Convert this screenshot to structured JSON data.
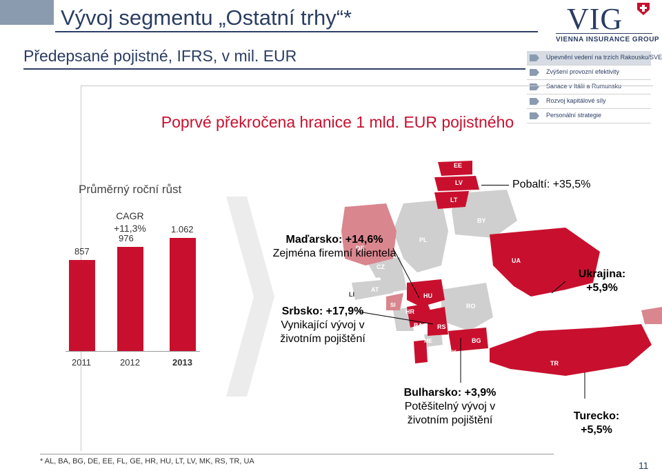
{
  "header": {
    "title": "Vývoj segmentu „Ostatní trhy“*",
    "subtitle": "Předepsané pojistné, IFRS, v mil. EUR"
  },
  "logo": {
    "brand": "VIG",
    "tagline": "VIENNA INSURANCE GROUP"
  },
  "side_menu": [
    {
      "label": "Upevnění vedení na trzích Rakousku/SVE",
      "active": true
    },
    {
      "label": "Zvýšení provozní efektivity",
      "active": false
    },
    {
      "label": "Sanace v Itálii a Rumunsku",
      "active": false
    },
    {
      "label": "Rozvoj kapitálové síly",
      "active": false
    },
    {
      "label": "Personální strategie",
      "active": false
    }
  ],
  "headline": "Poprvé překročena hranice 1 mld. EUR pojistného",
  "growth_chart": {
    "title": "Průměrný roční růst",
    "cagr_label": "CAGR",
    "cagr_value": "+11,3%"
  },
  "chart_data": {
    "type": "bar",
    "categories": [
      "2011",
      "2012",
      "2013"
    ],
    "values": [
      857,
      976,
      1062
    ],
    "value_labels": [
      "857",
      "976",
      "1.062"
    ],
    "title": "Průměrný roční růst",
    "ylim": [
      0,
      1100
    ],
    "bold_category": "2013",
    "color": "#c8102e"
  },
  "map": {
    "countries": [
      "EE",
      "LV",
      "LT",
      "PL",
      "BY",
      "DE",
      "CZ",
      "SK",
      "AT",
      "LI",
      "UA",
      "HU",
      "SI",
      "HR",
      "RO",
      "BA",
      "RS",
      "ME",
      "BG",
      "MK",
      "AL",
      "TR",
      "GE"
    ],
    "highlight_color": "#c8102e",
    "secondary_color": "#d9868f",
    "neutral_color": "#cfcfcf"
  },
  "annotations": {
    "pobalti": "Pobaltí: +35,5%",
    "madarsko_title": "Maďarsko: +14,6%",
    "madarsko_text": "Zejména firemní klientela",
    "srbsko_title": "Srbsko: +17,9%",
    "srbsko_text_1": "Vynikající vývoj v",
    "srbsko_text_2": "životním pojištění",
    "ukrajina_title": "Ukrajina:",
    "ukrajina_value": "+5,9%",
    "bulharsko_title": "Bulharsko: +3,9%",
    "bulharsko_text_1": "Potěšitelný vývoj v",
    "bulharsko_text_2": "životním pojištění",
    "turecko_title": "Turecko:",
    "turecko_value": "+5,5%"
  },
  "footnote": "*  AL, BA, BG, DE, EE, FL, GE, HR, HU, LT, LV, MK, RS, TR, UA",
  "page_number": "11"
}
